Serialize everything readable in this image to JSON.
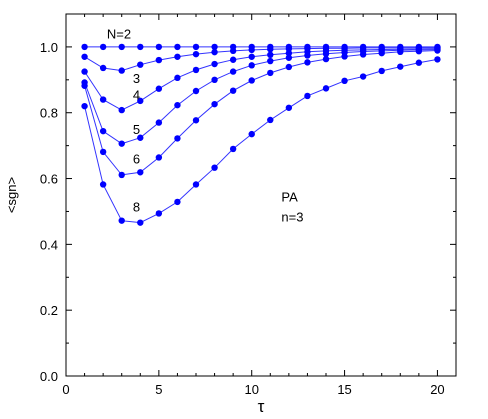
{
  "chart_data": {
    "type": "line",
    "xlabel": "τ",
    "ylabel": "<sgn>",
    "xlim": [
      0,
      21
    ],
    "ylim": [
      0.0,
      1.1
    ],
    "xticks": [
      0,
      5,
      10,
      15,
      20
    ],
    "yticks": [
      0.0,
      0.2,
      0.4,
      0.6,
      0.8,
      1.0
    ],
    "xtick_labels": [
      "0",
      "5",
      "10",
      "15",
      "20"
    ],
    "ytick_labels": [
      "0.0",
      "0.2",
      "0.4",
      "0.6",
      "0.8",
      "1.0"
    ],
    "grid": false,
    "marker_color": "#0000ff",
    "line_color": "#3333ff",
    "annotations": [
      {
        "text": "PA",
        "x": 11.6,
        "y": 0.53
      },
      {
        "text": "n=3",
        "x": 11.6,
        "y": 0.47
      }
    ],
    "series": [
      {
        "name": "N=2",
        "x": [
          1,
          2,
          3,
          4,
          5,
          6,
          7,
          8,
          9,
          10,
          11,
          12,
          13,
          14,
          15,
          16,
          17,
          18,
          19,
          20
        ],
        "values": [
          1.0,
          1.0,
          1.0,
          1.0,
          1.0,
          1.0,
          1.0,
          1.0,
          1.0,
          1.0,
          1.0,
          1.0,
          1.0,
          1.0,
          1.0,
          1.0,
          1.0,
          1.0,
          1.0,
          1.0
        ],
        "label_pos": [
          2.2,
          1.025
        ]
      },
      {
        "name": "3",
        "x": [
          1,
          2,
          3,
          4,
          5,
          6,
          7,
          8,
          9,
          10,
          11,
          12,
          13,
          14,
          15,
          16,
          17,
          18,
          19,
          20
        ],
        "values": [
          0.97,
          0.936,
          0.928,
          0.946,
          0.96,
          0.97,
          0.978,
          0.984,
          0.988,
          0.991,
          0.993,
          0.994,
          0.995,
          0.996,
          0.996,
          0.997,
          0.997,
          0.997,
          0.998,
          0.998
        ],
        "label_pos": [
          3.6,
          0.89
        ]
      },
      {
        "name": "4",
        "x": [
          1,
          2,
          3,
          4,
          5,
          6,
          7,
          8,
          9,
          10,
          11,
          12,
          13,
          14,
          15,
          16,
          17,
          18,
          19,
          20
        ],
        "values": [
          0.925,
          0.84,
          0.808,
          0.836,
          0.873,
          0.906,
          0.93,
          0.948,
          0.961,
          0.97,
          0.976,
          0.981,
          0.985,
          0.988,
          0.99,
          0.991,
          0.992,
          0.993,
          0.994,
          0.995
        ],
        "label_pos": [
          3.6,
          0.84
        ]
      },
      {
        "name": "5",
        "x": [
          1,
          2,
          3,
          4,
          5,
          6,
          7,
          8,
          9,
          10,
          11,
          12,
          13,
          14,
          15,
          16,
          17,
          18,
          19,
          20
        ],
        "values": [
          0.892,
          0.744,
          0.706,
          0.724,
          0.77,
          0.823,
          0.866,
          0.9,
          0.925,
          0.944,
          0.957,
          0.967,
          0.974,
          0.979,
          0.983,
          0.986,
          0.988,
          0.99,
          0.991,
          0.992
        ],
        "label_pos": [
          3.6,
          0.735
        ]
      },
      {
        "name": "6",
        "x": [
          1,
          2,
          3,
          4,
          5,
          6,
          7,
          8,
          9,
          10,
          11,
          12,
          13,
          14,
          15,
          16,
          17,
          18,
          19,
          20
        ],
        "values": [
          0.882,
          0.681,
          0.611,
          0.619,
          0.664,
          0.722,
          0.777,
          0.826,
          0.867,
          0.898,
          0.921,
          0.939,
          0.953,
          0.963,
          0.971,
          0.977,
          0.981,
          0.985,
          0.987,
          0.989
        ],
        "label_pos": [
          3.6,
          0.645
        ]
      },
      {
        "name": "8",
        "x": [
          1,
          2,
          3,
          4,
          5,
          6,
          7,
          8,
          9,
          10,
          11,
          12,
          13,
          14,
          15,
          16,
          17,
          18,
          19,
          20
        ],
        "values": [
          0.82,
          0.582,
          0.472,
          0.466,
          0.494,
          0.529,
          0.582,
          0.633,
          0.69,
          0.735,
          0.778,
          0.815,
          0.851,
          0.874,
          0.897,
          0.91,
          0.927,
          0.94,
          0.952,
          0.962
        ],
        "label_pos": [
          3.6,
          0.5
        ]
      }
    ]
  }
}
